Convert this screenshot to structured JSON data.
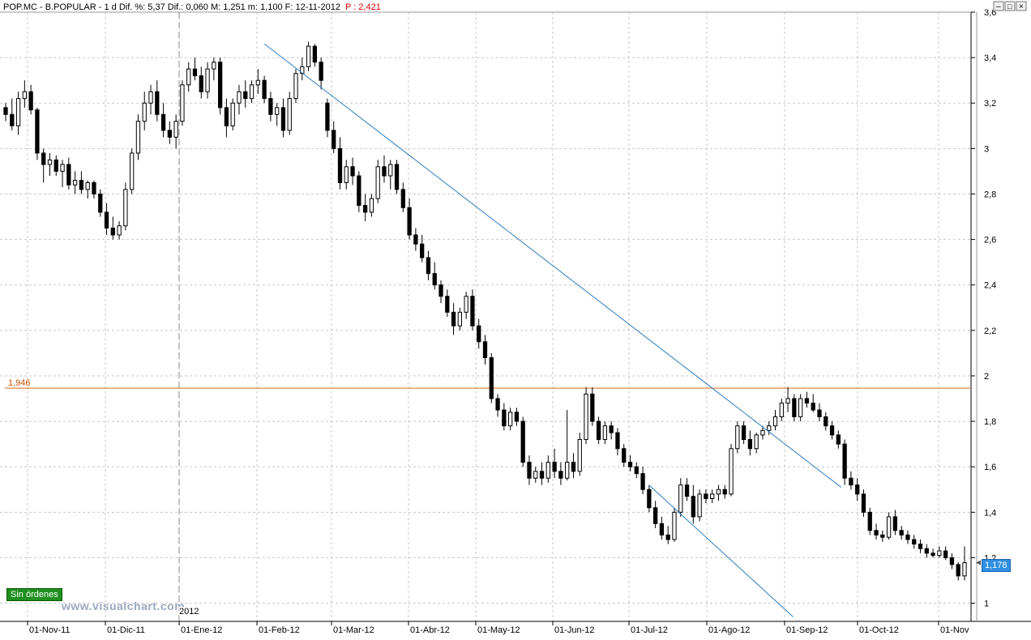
{
  "header": {
    "text": "POP.MC - B.POPULAR - 1 d Dif. %: 5,37  Dif.: 0,060  M: 1,251  m: 1,100  F: 12-11-2012 ",
    "p_label": "P : 2,421"
  },
  "badge": {
    "sin_ordenes": "Sin órdenes"
  },
  "watermark": "www.visualchart.com",
  "year_label": "2012",
  "price_tag": "1,178",
  "level_label": "1,946",
  "colors": {
    "trendline": "#2f7fc0",
    "level_line": "#e06a1c",
    "price_tag": "#2f8fe0",
    "badge": "#1f8f1f",
    "candle": "#000000"
  },
  "chart_data": {
    "type": "candlestick",
    "ylim": [
      0.92,
      3.6
    ],
    "yticks": [
      "1",
      "1,2",
      "1,4",
      "1,6",
      "1,8",
      "2",
      "2,2",
      "2,4",
      "2,6",
      "2,8",
      "3",
      "3,2",
      "3,4",
      "3,6"
    ],
    "xticks": [
      "01-Nov-11",
      "01-Dic-11",
      "01-Ene-12",
      "01-Feb-12",
      "01-Mar-12",
      "01-Abr-12",
      "01-May-12",
      "01-Jun-12",
      "01-Jul-12",
      "01-Ago-12",
      "01-Sep-12",
      "01-Oct-12",
      "01-Nov"
    ],
    "horizontal_level": 1.946,
    "last_price": 1.178,
    "trendlines": [
      {
        "from": [
          8,
          3.46
        ],
        "to": [
          27.8,
          1.51
        ]
      },
      {
        "from": [
          21.3,
          1.52
        ],
        "to": [
          26.1,
          0.94
        ]
      }
    ],
    "series": [
      {
        "values": [
          [
            3.18,
            3.2,
            3.12,
            3.15
          ],
          [
            3.15,
            3.22,
            3.08,
            3.1
          ],
          [
            3.1,
            3.25,
            3.06,
            3.22
          ],
          [
            3.22,
            3.3,
            3.18,
            3.25
          ],
          [
            3.25,
            3.28,
            3.15,
            3.17
          ],
          [
            3.17,
            3.18,
            2.95,
            2.98
          ],
          [
            2.98,
            3.0,
            2.85,
            2.93
          ],
          [
            2.93,
            2.98,
            2.88,
            2.95
          ],
          [
            2.95,
            2.97,
            2.88,
            2.9
          ],
          [
            2.9,
            2.95,
            2.83,
            2.93
          ],
          [
            2.93,
            2.96,
            2.82,
            2.84
          ],
          [
            2.84,
            2.9,
            2.8,
            2.86
          ],
          [
            2.86,
            2.9,
            2.8,
            2.82
          ],
          [
            2.82,
            2.86,
            2.78,
            2.85
          ],
          [
            2.85,
            2.86,
            2.78,
            2.8
          ],
          [
            2.8,
            2.82,
            2.7,
            2.72
          ],
          [
            2.72,
            2.76,
            2.62,
            2.65
          ],
          [
            2.65,
            2.7,
            2.6,
            2.62
          ],
          [
            2.62,
            2.68,
            2.6,
            2.66
          ],
          [
            2.66,
            2.85,
            2.64,
            2.82
          ],
          [
            2.82,
            3.0,
            2.8,
            2.98
          ],
          [
            2.98,
            3.15,
            2.95,
            3.12
          ],
          [
            3.12,
            3.25,
            3.08,
            3.2
          ],
          [
            3.2,
            3.28,
            3.15,
            3.25
          ],
          [
            3.25,
            3.3,
            3.12,
            3.15
          ],
          [
            3.15,
            3.2,
            3.05,
            3.08
          ],
          [
            3.08,
            3.12,
            3.02,
            3.05
          ],
          [
            3.05,
            3.15,
            3.0,
            3.12
          ],
          [
            3.12,
            3.3,
            3.1,
            3.28
          ],
          [
            3.28,
            3.38,
            3.25,
            3.35
          ],
          [
            3.35,
            3.4,
            3.3,
            3.32
          ],
          [
            3.32,
            3.36,
            3.22,
            3.25
          ],
          [
            3.25,
            3.38,
            3.22,
            3.35
          ],
          [
            3.35,
            3.4,
            3.3,
            3.38
          ],
          [
            3.38,
            3.4,
            3.15,
            3.18
          ],
          [
            3.18,
            3.22,
            3.05,
            3.1
          ],
          [
            3.1,
            3.22,
            3.08,
            3.2
          ],
          [
            3.2,
            3.28,
            3.15,
            3.25
          ],
          [
            3.25,
            3.3,
            3.18,
            3.22
          ],
          [
            3.22,
            3.3,
            3.2,
            3.28
          ],
          [
            3.28,
            3.35,
            3.24,
            3.3
          ],
          [
            3.3,
            3.32,
            3.2,
            3.22
          ],
          [
            3.22,
            3.25,
            3.12,
            3.15
          ],
          [
            3.15,
            3.2,
            3.1,
            3.18
          ],
          [
            3.18,
            3.22,
            3.05,
            3.08
          ],
          [
            3.08,
            3.25,
            3.06,
            3.22
          ],
          [
            3.22,
            3.35,
            3.2,
            3.33
          ],
          [
            3.33,
            3.4,
            3.3,
            3.36
          ],
          [
            3.36,
            3.47,
            3.34,
            3.45
          ],
          [
            3.45,
            3.46,
            3.36,
            3.38
          ],
          [
            3.38,
            3.4,
            3.26,
            3.3
          ],
          [
            3.2,
            3.22,
            3.05,
            3.08
          ],
          [
            3.08,
            3.12,
            2.98,
            3.0
          ],
          [
            3.0,
            3.05,
            2.82,
            2.85
          ],
          [
            2.85,
            2.95,
            2.82,
            2.92
          ],
          [
            2.92,
            2.96,
            2.84,
            2.88
          ],
          [
            2.88,
            2.9,
            2.72,
            2.75
          ],
          [
            2.75,
            2.8,
            2.68,
            2.72
          ],
          [
            2.72,
            2.8,
            2.7,
            2.78
          ],
          [
            2.78,
            2.95,
            2.76,
            2.92
          ],
          [
            2.92,
            2.97,
            2.85,
            2.88
          ],
          [
            2.88,
            2.95,
            2.82,
            2.93
          ],
          [
            2.93,
            2.95,
            2.8,
            2.82
          ],
          [
            2.82,
            2.85,
            2.72,
            2.74
          ],
          [
            2.74,
            2.78,
            2.6,
            2.62
          ],
          [
            2.62,
            2.65,
            2.55,
            2.58
          ],
          [
            2.58,
            2.62,
            2.5,
            2.52
          ],
          [
            2.52,
            2.55,
            2.42,
            2.45
          ],
          [
            2.45,
            2.5,
            2.38,
            2.4
          ],
          [
            2.4,
            2.42,
            2.32,
            2.35
          ],
          [
            2.35,
            2.38,
            2.26,
            2.28
          ],
          [
            2.28,
            2.32,
            2.18,
            2.22
          ],
          [
            2.22,
            2.3,
            2.2,
            2.28
          ],
          [
            2.28,
            2.37,
            2.25,
            2.35
          ],
          [
            2.35,
            2.38,
            2.2,
            2.22
          ],
          [
            2.22,
            2.25,
            2.12,
            2.15
          ],
          [
            2.15,
            2.18,
            2.05,
            2.08
          ],
          [
            2.08,
            2.1,
            1.88,
            1.9
          ],
          [
            1.9,
            1.92,
            1.82,
            1.85
          ],
          [
            1.85,
            1.88,
            1.76,
            1.78
          ],
          [
            1.78,
            1.86,
            1.76,
            1.84
          ],
          [
            1.84,
            1.86,
            1.78,
            1.8
          ],
          [
            1.8,
            1.82,
            1.6,
            1.62
          ],
          [
            1.62,
            1.65,
            1.52,
            1.55
          ],
          [
            1.55,
            1.6,
            1.53,
            1.58
          ],
          [
            1.58,
            1.62,
            1.52,
            1.55
          ],
          [
            1.55,
            1.65,
            1.53,
            1.62
          ],
          [
            1.62,
            1.68,
            1.55,
            1.58
          ],
          [
            1.58,
            1.62,
            1.52,
            1.55
          ],
          [
            1.55,
            1.85,
            1.54,
            1.62
          ],
          [
            1.62,
            1.66,
            1.55,
            1.58
          ],
          [
            1.58,
            1.75,
            1.56,
            1.72
          ],
          [
            1.72,
            1.95,
            1.7,
            1.92
          ],
          [
            1.92,
            1.95,
            1.78,
            1.8
          ],
          [
            1.8,
            1.82,
            1.7,
            1.72
          ],
          [
            1.72,
            1.8,
            1.7,
            1.78
          ],
          [
            1.78,
            1.8,
            1.72,
            1.75
          ],
          [
            1.75,
            1.77,
            1.65,
            1.68
          ],
          [
            1.68,
            1.7,
            1.6,
            1.62
          ],
          [
            1.62,
            1.65,
            1.58,
            1.6
          ],
          [
            1.6,
            1.62,
            1.55,
            1.57
          ],
          [
            1.57,
            1.6,
            1.48,
            1.5
          ],
          [
            1.5,
            1.52,
            1.4,
            1.42
          ],
          [
            1.42,
            1.45,
            1.33,
            1.35
          ],
          [
            1.35,
            1.38,
            1.28,
            1.3
          ],
          [
            1.3,
            1.34,
            1.26,
            1.28
          ],
          [
            1.28,
            1.42,
            1.27,
            1.4
          ],
          [
            1.4,
            1.55,
            1.38,
            1.52
          ],
          [
            1.52,
            1.55,
            1.45,
            1.47
          ],
          [
            1.47,
            1.52,
            1.35,
            1.38
          ],
          [
            1.38,
            1.5,
            1.36,
            1.48
          ],
          [
            1.48,
            1.5,
            1.44,
            1.46
          ],
          [
            1.46,
            1.5,
            1.44,
            1.48
          ],
          [
            1.48,
            1.52,
            1.45,
            1.5
          ],
          [
            1.5,
            1.52,
            1.46,
            1.48
          ],
          [
            1.48,
            1.7,
            1.47,
            1.68
          ],
          [
            1.68,
            1.8,
            1.66,
            1.78
          ],
          [
            1.78,
            1.8,
            1.7,
            1.72
          ],
          [
            1.72,
            1.76,
            1.65,
            1.68
          ],
          [
            1.68,
            1.75,
            1.66,
            1.74
          ],
          [
            1.74,
            1.78,
            1.72,
            1.76
          ],
          [
            1.76,
            1.8,
            1.74,
            1.78
          ],
          [
            1.78,
            1.85,
            1.76,
            1.82
          ],
          [
            1.82,
            1.9,
            1.8,
            1.88
          ],
          [
            1.88,
            1.95,
            1.84,
            1.9
          ],
          [
            1.9,
            1.92,
            1.8,
            1.82
          ],
          [
            1.82,
            1.92,
            1.8,
            1.9
          ],
          [
            1.9,
            1.93,
            1.86,
            1.88
          ],
          [
            1.88,
            1.92,
            1.84,
            1.85
          ],
          [
            1.85,
            1.88,
            1.8,
            1.82
          ],
          [
            1.82,
            1.84,
            1.76,
            1.78
          ],
          [
            1.78,
            1.8,
            1.72,
            1.74
          ],
          [
            1.74,
            1.76,
            1.68,
            1.7
          ],
          [
            1.7,
            1.72,
            1.52,
            1.55
          ],
          [
            1.55,
            1.58,
            1.5,
            1.52
          ],
          [
            1.52,
            1.55,
            1.45,
            1.48
          ],
          [
            1.48,
            1.5,
            1.38,
            1.4
          ],
          [
            1.4,
            1.42,
            1.3,
            1.32
          ],
          [
            1.32,
            1.35,
            1.28,
            1.3
          ],
          [
            1.3,
            1.32,
            1.27,
            1.29
          ],
          [
            1.29,
            1.4,
            1.28,
            1.38
          ],
          [
            1.38,
            1.41,
            1.3,
            1.32
          ],
          [
            1.32,
            1.34,
            1.28,
            1.3
          ],
          [
            1.3,
            1.32,
            1.26,
            1.28
          ],
          [
            1.28,
            1.3,
            1.24,
            1.26
          ],
          [
            1.26,
            1.28,
            1.22,
            1.24
          ],
          [
            1.24,
            1.26,
            1.2,
            1.22
          ],
          [
            1.22,
            1.24,
            1.2,
            1.21
          ],
          [
            1.21,
            1.25,
            1.2,
            1.23
          ],
          [
            1.23,
            1.25,
            1.19,
            1.2
          ],
          [
            1.2,
            1.22,
            1.15,
            1.17
          ],
          [
            1.17,
            1.18,
            1.1,
            1.12
          ],
          [
            1.12,
            1.25,
            1.1,
            1.178
          ]
        ]
      }
    ]
  }
}
